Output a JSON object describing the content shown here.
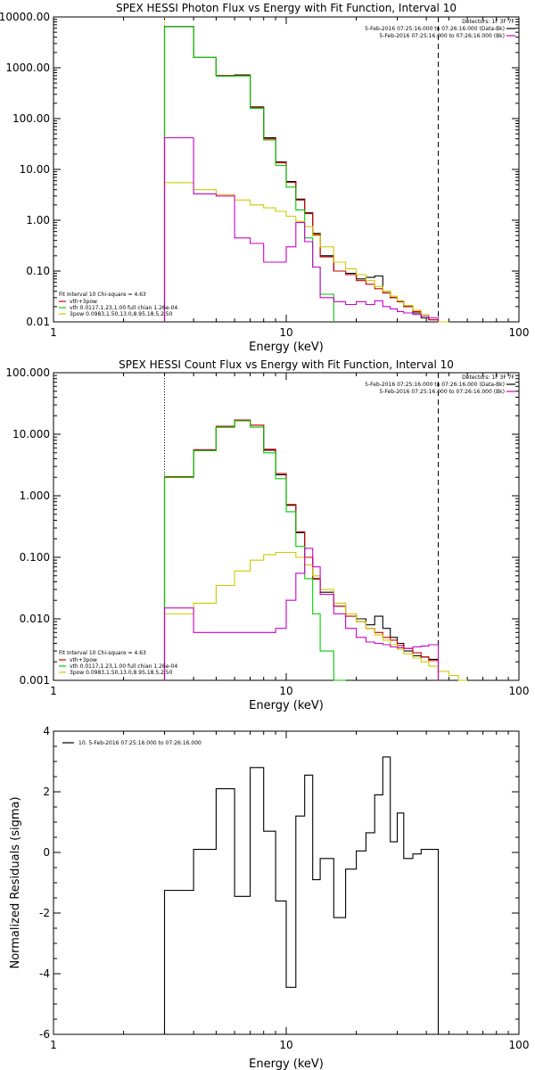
{
  "chart_data": [
    {
      "type": "line",
      "title": "SPEX HESSI Photon Flux vs Energy with Fit Function, Interval 10",
      "xlabel": "Energy (keV)",
      "ylabel": "",
      "xscale": "log",
      "yscale": "log",
      "xlim": [
        1,
        100
      ],
      "ylim": [
        0.01,
        10000
      ],
      "x_ticks": [
        {
          "v": 1,
          "label": "1"
        },
        {
          "v": 10,
          "label": "10"
        },
        {
          "v": 100,
          "label": "100"
        }
      ],
      "y_ticks": [
        {
          "v": 10000,
          "label": "10000.00"
        },
        {
          "v": 1000,
          "label": "1000.00"
        },
        {
          "v": 100,
          "label": "100.00"
        },
        {
          "v": 10,
          "label": "10.00"
        },
        {
          "v": 1,
          "label": "1.00"
        },
        {
          "v": 0.1,
          "label": "0.10"
        },
        {
          "v": 0.01,
          "label": "0.01"
        }
      ],
      "vlines": [
        {
          "x": 3.0,
          "style": "dotted",
          "color": "#cc9900"
        },
        {
          "x": 45.0,
          "style": "dashed",
          "color": "#000000"
        }
      ],
      "legend_top_right": {
        "header": "Detectors: 1F 3F 7F",
        "entries": [
          {
            "label": "5-Feb-2016 07:25:16.000 to 07:26:16.000 (Data-Bk)",
            "color": "#000000"
          },
          {
            "label": "5-Feb-2016 07:25:16.000 to 07:26:16.000 (Bk)",
            "color": "#cc00cc"
          }
        ]
      },
      "legend_bottom_left": {
        "header": "Fit Interval 10   Chi-square = 4.63",
        "entries": [
          {
            "label": "vth+3pow",
            "color": "#cc0000"
          },
          {
            "label": "vth 0.0117,1.23,1.00  full chian 1.26e-04",
            "color": "#00cc00"
          },
          {
            "label": "3pow 0.0983,1.50,13.0,8.95,18.5,2.50",
            "color": "#cccc00"
          }
        ]
      },
      "series": [
        {
          "name": "Data-Bk",
          "color": "#000000",
          "edges": [
            3,
            4,
            5,
            6,
            7,
            8,
            9,
            10,
            11,
            12,
            13,
            14,
            16,
            18,
            20,
            22,
            24,
            26,
            28,
            30,
            32,
            35,
            38,
            41,
            45
          ],
          "values": [
            6500,
            1600,
            700,
            720,
            170,
            42,
            14,
            5.8,
            2.6,
            1.4,
            0.55,
            0.2,
            0.1,
            0.09,
            0.07,
            0.075,
            0.08,
            0.04,
            0.03,
            0.025,
            0.02,
            0.015,
            0.012,
            0.011
          ]
        },
        {
          "name": "vth+3pow",
          "color": "#cc0000",
          "edges": [
            3,
            4,
            5,
            6,
            7,
            8,
            9,
            10,
            11,
            12,
            13,
            14,
            16,
            18,
            20,
            22,
            24,
            26,
            28,
            30,
            32,
            35,
            38,
            41,
            45
          ],
          "values": [
            6500,
            1600,
            690,
            700,
            165,
            40,
            13.5,
            5.6,
            2.5,
            1.35,
            0.52,
            0.19,
            0.1,
            0.085,
            0.065,
            0.055,
            0.045,
            0.037,
            0.03,
            0.025,
            0.02,
            0.016,
            0.013,
            0.011
          ]
        },
        {
          "name": "vth",
          "color": "#00cc00",
          "edges": [
            3,
            4,
            5,
            6,
            7,
            8,
            9,
            10,
            11,
            12,
            13,
            14,
            16
          ],
          "values": [
            6500,
            1600,
            680,
            690,
            160,
            38,
            12,
            4.5,
            1.6,
            0.45,
            0.12,
            0.035
          ]
        },
        {
          "name": "3pow",
          "color": "#cccc00",
          "edges": [
            3,
            4,
            5,
            6,
            7,
            8,
            9,
            10,
            11,
            12,
            13,
            14,
            16,
            18,
            20,
            22,
            24,
            26,
            28,
            30,
            32,
            35,
            38,
            41,
            45,
            50
          ],
          "values": [
            5.5,
            4.0,
            3.2,
            2.5,
            2.0,
            1.75,
            1.5,
            1.2,
            0.95,
            0.75,
            0.5,
            0.3,
            0.15,
            0.11,
            0.085,
            0.065,
            0.05,
            0.04,
            0.032,
            0.026,
            0.021,
            0.017,
            0.014,
            0.012,
            0.01
          ]
        },
        {
          "name": "Bk",
          "color": "#cc00cc",
          "edges": [
            3,
            4,
            5,
            6,
            7,
            8,
            9,
            10,
            11,
            12,
            13,
            14,
            16,
            18,
            20,
            22,
            24,
            26,
            28,
            30,
            32,
            35,
            38,
            41,
            45
          ],
          "values": [
            42,
            3.3,
            3.0,
            0.45,
            0.35,
            0.15,
            0.15,
            0.3,
            0.9,
            0.38,
            0.12,
            0.03,
            0.025,
            0.022,
            0.025,
            0.022,
            0.026,
            0.02,
            0.018,
            0.016,
            0.015,
            0.014,
            0.013,
            0.012
          ]
        }
      ]
    },
    {
      "type": "line",
      "title": "SPEX HESSI Count Flux vs Energy with Fit Function, Interval 10",
      "xlabel": "Energy (keV)",
      "ylabel": "",
      "xscale": "log",
      "yscale": "log",
      "xlim": [
        1,
        100
      ],
      "ylim": [
        0.001,
        100
      ],
      "x_ticks": [
        {
          "v": 1,
          "label": "1"
        },
        {
          "v": 10,
          "label": "10"
        },
        {
          "v": 100,
          "label": "100"
        }
      ],
      "y_ticks": [
        {
          "v": 100,
          "label": "100.000"
        },
        {
          "v": 10,
          "label": "10.000"
        },
        {
          "v": 1,
          "label": "1.000"
        },
        {
          "v": 0.1,
          "label": "0.100"
        },
        {
          "v": 0.01,
          "label": "0.010"
        },
        {
          "v": 0.001,
          "label": "0.001"
        }
      ],
      "vlines": [
        {
          "x": 3.0,
          "style": "dotted",
          "color": "#000000"
        },
        {
          "x": 45.0,
          "style": "dashed",
          "color": "#000000"
        }
      ],
      "legend_top_right": {
        "header": "Detectors: 1F 3F 7F",
        "entries": [
          {
            "label": "5-Feb-2016 07:25:16.000 to 07:26:16.000 (Data-Bk)",
            "color": "#000000"
          },
          {
            "label": "5-Feb-2016 07:25:16.000 to 07:26:16.000 (Bk)",
            "color": "#cc00cc"
          }
        ]
      },
      "legend_bottom_left": {
        "header": "Fit Interval 10   Chi-square = 4.63",
        "entries": [
          {
            "label": "vth+3pow",
            "color": "#cc0000"
          },
          {
            "label": "vth 0.0117,1.23,1.00  full chian 1.26e-04",
            "color": "#00cc00"
          },
          {
            "label": "3pow 0.0983,1.50,13.0,8.95,18.5,2.50",
            "color": "#cccc00"
          }
        ]
      },
      "series": [
        {
          "name": "Data-Bk",
          "color": "#000000",
          "edges": [
            3,
            4,
            5,
            6,
            7,
            8,
            9,
            10,
            11,
            12,
            13,
            14,
            16,
            18,
            20,
            22,
            24,
            26,
            28,
            30,
            32,
            35,
            38,
            41,
            45
          ],
          "values": [
            2.0,
            5.5,
            13,
            17,
            14,
            5.5,
            2.2,
            0.7,
            0.25,
            0.1,
            0.045,
            0.027,
            0.016,
            0.012,
            0.01,
            0.008,
            0.011,
            0.007,
            0.005,
            0.004,
            0.003,
            0.0025,
            0.0024,
            0.0022
          ]
        },
        {
          "name": "vth+3pow",
          "color": "#cc0000",
          "edges": [
            3,
            4,
            5,
            6,
            7,
            8,
            9,
            10,
            11,
            12,
            13,
            14,
            16,
            18,
            20,
            22,
            24,
            26,
            28,
            30,
            32,
            35,
            38,
            41,
            45
          ],
          "values": [
            2.05,
            5.6,
            13.5,
            17,
            14,
            5.7,
            2.3,
            0.72,
            0.26,
            0.1,
            0.044,
            0.025,
            0.016,
            0.011,
            0.009,
            0.007,
            0.006,
            0.005,
            0.0045,
            0.0037,
            0.0033,
            0.0028,
            0.0024,
            0.0021
          ]
        },
        {
          "name": "vth",
          "color": "#00cc00",
          "edges": [
            3,
            4,
            5,
            6,
            7,
            8,
            9,
            10,
            11,
            12,
            13,
            14,
            16,
            18
          ],
          "values": [
            2.0,
            5.4,
            13,
            16.5,
            13,
            5.0,
            1.9,
            0.55,
            0.15,
            0.045,
            0.012,
            0.003,
            0.001
          ]
        },
        {
          "name": "3pow",
          "color": "#cccc00",
          "edges": [
            3,
            4,
            5,
            6,
            7,
            8,
            9,
            10,
            11,
            12,
            13,
            14,
            16,
            18,
            20,
            22,
            24,
            26,
            28,
            30,
            32,
            35,
            38,
            41,
            45,
            50,
            55,
            60
          ],
          "values": [
            0.012,
            0.018,
            0.035,
            0.06,
            0.09,
            0.11,
            0.12,
            0.12,
            0.1,
            0.075,
            0.05,
            0.03,
            0.018,
            0.012,
            0.009,
            0.007,
            0.0055,
            0.0045,
            0.0038,
            0.0032,
            0.0027,
            0.0023,
            0.002,
            0.0017,
            0.0014,
            0.0012,
            0.001
          ]
        },
        {
          "name": "Bk",
          "color": "#cc00cc",
          "edges": [
            3,
            4,
            5,
            6,
            7,
            8,
            9,
            10,
            11,
            12,
            13,
            14,
            16,
            18,
            20,
            22,
            24,
            26,
            28,
            30,
            32,
            35,
            38,
            41,
            45
          ],
          "values": [
            0.015,
            0.006,
            0.006,
            0.006,
            0.006,
            0.006,
            0.007,
            0.02,
            0.055,
            0.14,
            0.07,
            0.025,
            0.012,
            0.007,
            0.005,
            0.0042,
            0.004,
            0.0038,
            0.0035,
            0.0034,
            0.0033,
            0.0035,
            0.0036,
            0.0038
          ]
        }
      ]
    },
    {
      "type": "line",
      "title": "",
      "xlabel": "Energy (keV)",
      "ylabel": "Normalized Residuals (sigma)",
      "xscale": "log",
      "yscale": "linear",
      "xlim": [
        1,
        100
      ],
      "ylim": [
        -6,
        4
      ],
      "x_ticks": [
        {
          "v": 1,
          "label": "1"
        },
        {
          "v": 10,
          "label": "10"
        },
        {
          "v": 100,
          "label": "100"
        }
      ],
      "y_ticks": [
        {
          "v": 4,
          "label": "4"
        },
        {
          "v": 2,
          "label": "2"
        },
        {
          "v": 0,
          "label": "0"
        },
        {
          "v": -2,
          "label": "-2"
        },
        {
          "v": -4,
          "label": "-4"
        },
        {
          "v": -6,
          "label": "-6"
        }
      ],
      "legend_top_left": {
        "entries": [
          {
            "label": "10.  5-Feb-2016 07:25:16.000 to 07:26:16.000",
            "color": "#000000"
          }
        ]
      },
      "series": [
        {
          "name": "10.  5-Feb-2016 07:25:16.000 to 07:26:16.000",
          "color": "#000000",
          "edges": [
            3,
            4,
            5,
            6,
            7,
            8,
            9,
            10,
            11,
            12,
            13,
            14,
            16,
            18,
            20,
            22,
            24,
            26,
            28,
            30,
            32,
            35,
            38,
            41,
            45
          ],
          "values": [
            -1.25,
            0.1,
            2.1,
            -1.45,
            2.8,
            0.7,
            -1.6,
            -4.45,
            1.2,
            2.55,
            -0.9,
            -0.2,
            -2.15,
            -0.55,
            0.05,
            0.65,
            1.9,
            3.15,
            0.35,
            1.3,
            -0.2,
            -0.05,
            0.1,
            0.1
          ]
        }
      ]
    }
  ]
}
